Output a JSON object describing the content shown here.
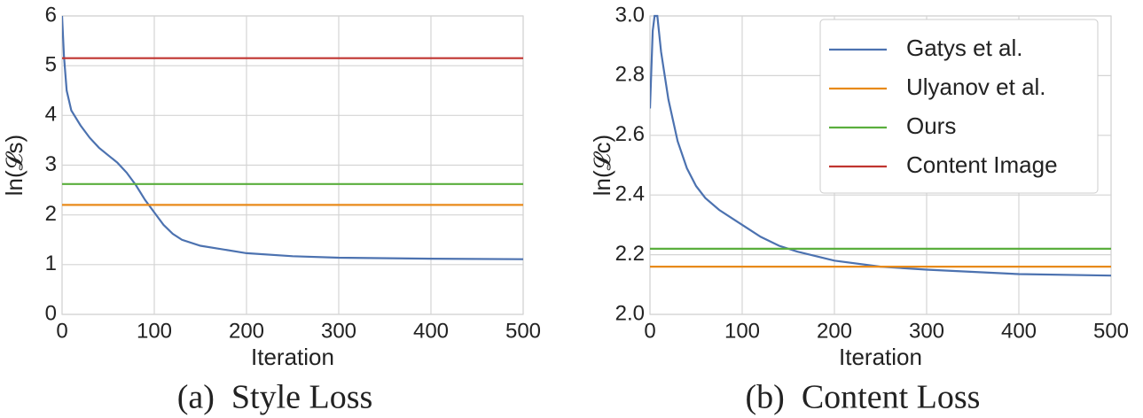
{
  "chart_data": [
    {
      "type": "line",
      "title": "(a)  Style Loss",
      "xlabel": "Iteration",
      "ylabel": "ln(𝓛s)",
      "xlim": [
        0,
        500
      ],
      "xticks": [
        0,
        100,
        200,
        300,
        400,
        500
      ],
      "ylim": [
        0,
        6
      ],
      "yticks": [
        0,
        1,
        2,
        3,
        4,
        5,
        6
      ],
      "grid": true,
      "series": [
        {
          "color": "#4c72b0",
          "x": [
            0,
            2,
            5,
            10,
            20,
            30,
            40,
            50,
            60,
            70,
            80,
            90,
            100,
            110,
            120,
            130,
            150,
            200,
            250,
            300,
            400,
            500
          ],
          "values": [
            6.0,
            5.2,
            4.5,
            4.1,
            3.8,
            3.55,
            3.35,
            3.2,
            3.05,
            2.85,
            2.6,
            2.3,
            2.05,
            1.8,
            1.62,
            1.5,
            1.38,
            1.23,
            1.17,
            1.14,
            1.12,
            1.11
          ]
        },
        {
          "color": "#e88a1a",
          "x": [
            0,
            500
          ],
          "values": [
            2.2,
            2.2
          ]
        },
        {
          "color": "#5aae3d",
          "x": [
            0,
            500
          ],
          "values": [
            2.62,
            2.62
          ]
        },
        {
          "color": "#c03530",
          "x": [
            0,
            500
          ],
          "values": [
            5.15,
            5.15
          ]
        }
      ]
    },
    {
      "type": "line",
      "title": "(b)  Content Loss",
      "xlabel": "Iteration",
      "ylabel": "ln(𝓛c)",
      "xlim": [
        0,
        500
      ],
      "xticks": [
        0,
        100,
        200,
        300,
        400,
        500
      ],
      "ylim": [
        2,
        3
      ],
      "yticks": [
        {
          "value": 2,
          "label": "2.0"
        },
        2.2,
        2.4,
        2.6,
        2.8,
        {
          "value": 3,
          "label": "3.0"
        }
      ],
      "grid": true,
      "legend": "upper right",
      "series": [
        {
          "name": "Gatys et al.",
          "color": "#4c72b0",
          "x": [
            0,
            3,
            5,
            8,
            12,
            15,
            20,
            25,
            30,
            40,
            50,
            60,
            75,
            90,
            100,
            120,
            140,
            160,
            200,
            250,
            300,
            400,
            500
          ],
          "values": [
            2.69,
            2.95,
            3.0,
            3.0,
            2.88,
            2.82,
            2.72,
            2.65,
            2.58,
            2.49,
            2.43,
            2.39,
            2.35,
            2.32,
            2.3,
            2.26,
            2.23,
            2.21,
            2.18,
            2.16,
            2.15,
            2.135,
            2.13
          ]
        },
        {
          "name": "Ulyanov et al.",
          "color": "#e88a1a",
          "x": [
            0,
            500
          ],
          "values": [
            2.16,
            2.16
          ]
        },
        {
          "name": "Ours",
          "color": "#5aae3d",
          "x": [
            0,
            500
          ],
          "values": [
            2.22,
            2.22
          ]
        },
        {
          "name": "Content Image",
          "color": "#c03530",
          "x": [],
          "values": []
        }
      ]
    }
  ]
}
